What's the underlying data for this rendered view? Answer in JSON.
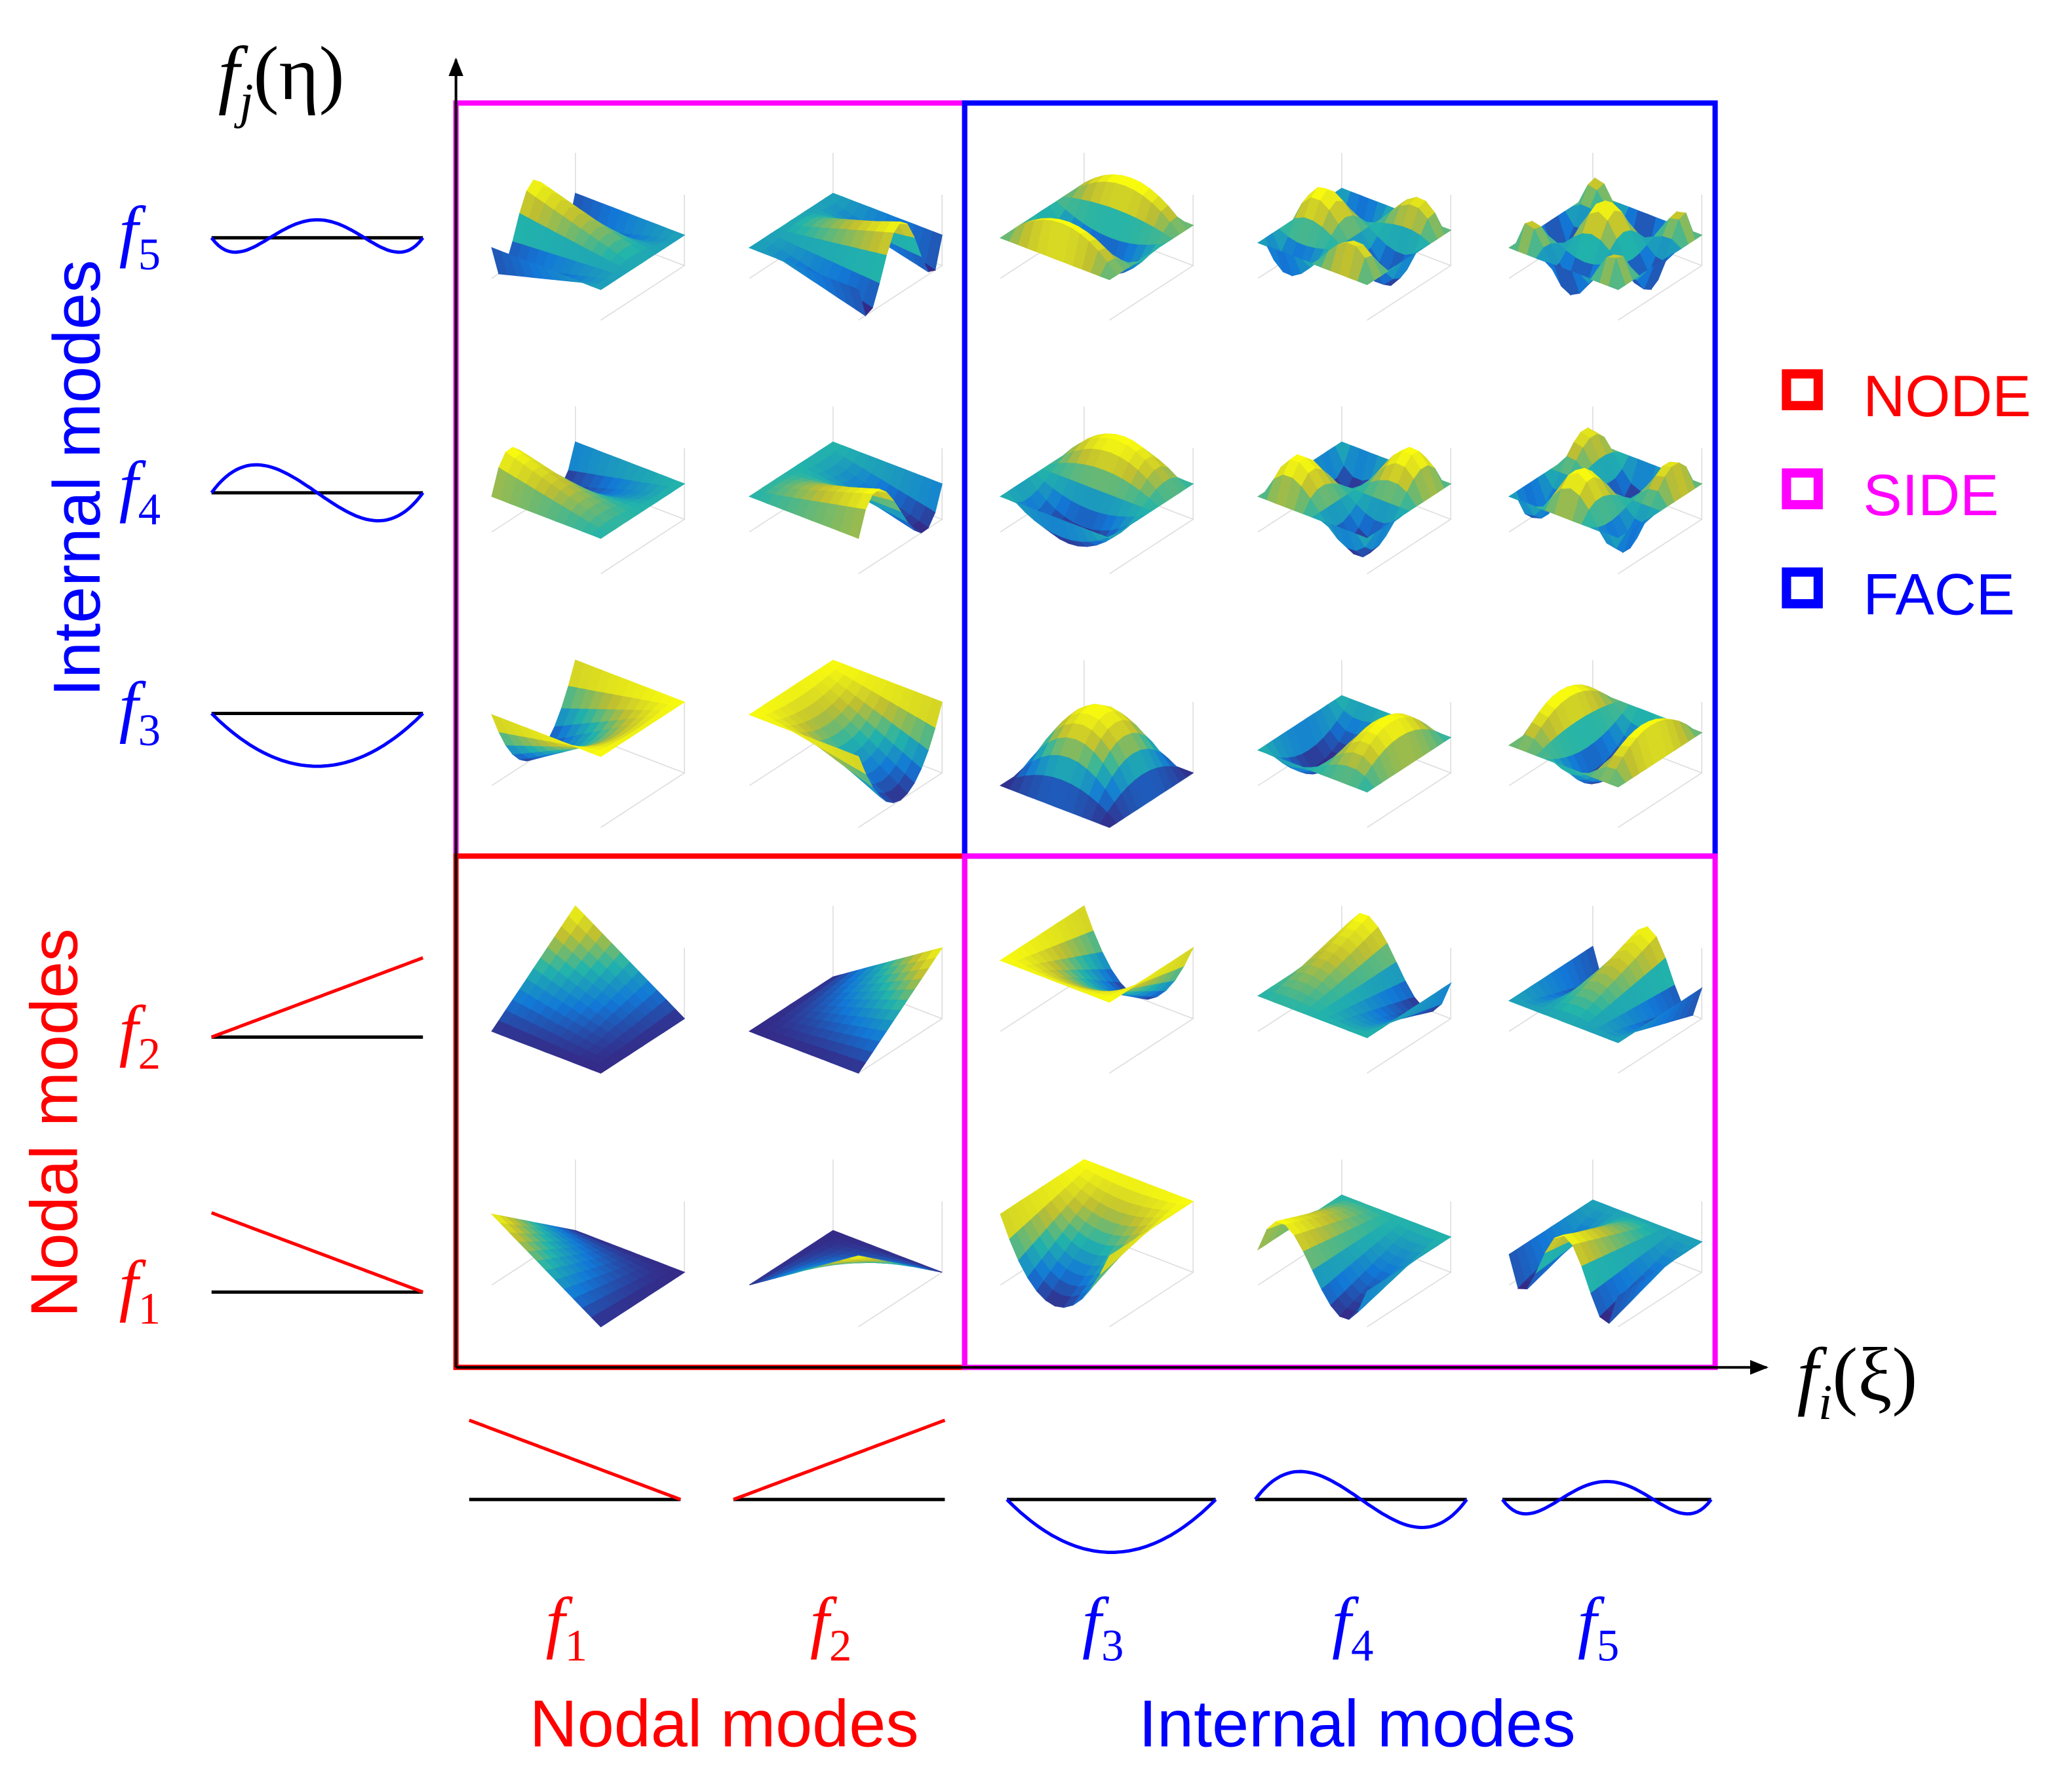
{
  "axes": {
    "vertical": {
      "base": "f",
      "sub": "j",
      "arg": "(η)"
    },
    "horizontal": {
      "base": "f",
      "sub": "i",
      "arg": "(ξ)"
    }
  },
  "rows": [
    {
      "base": "f",
      "sub": "5"
    },
    {
      "base": "f",
      "sub": "4"
    },
    {
      "base": "f",
      "sub": "3"
    },
    {
      "base": "f",
      "sub": "2"
    },
    {
      "base": "f",
      "sub": "1"
    }
  ],
  "columns": [
    {
      "base": "f",
      "sub": "1"
    },
    {
      "base": "f",
      "sub": "2"
    },
    {
      "base": "f",
      "sub": "3"
    },
    {
      "base": "f",
      "sub": "4"
    },
    {
      "base": "f",
      "sub": "5"
    }
  ],
  "row_groups": [
    "Internal modes",
    "Nodal modes"
  ],
  "column_groups": [
    "Nodal modes",
    "Internal modes"
  ],
  "legend": [
    "NODE",
    "SIDE",
    "FACE"
  ]
}
